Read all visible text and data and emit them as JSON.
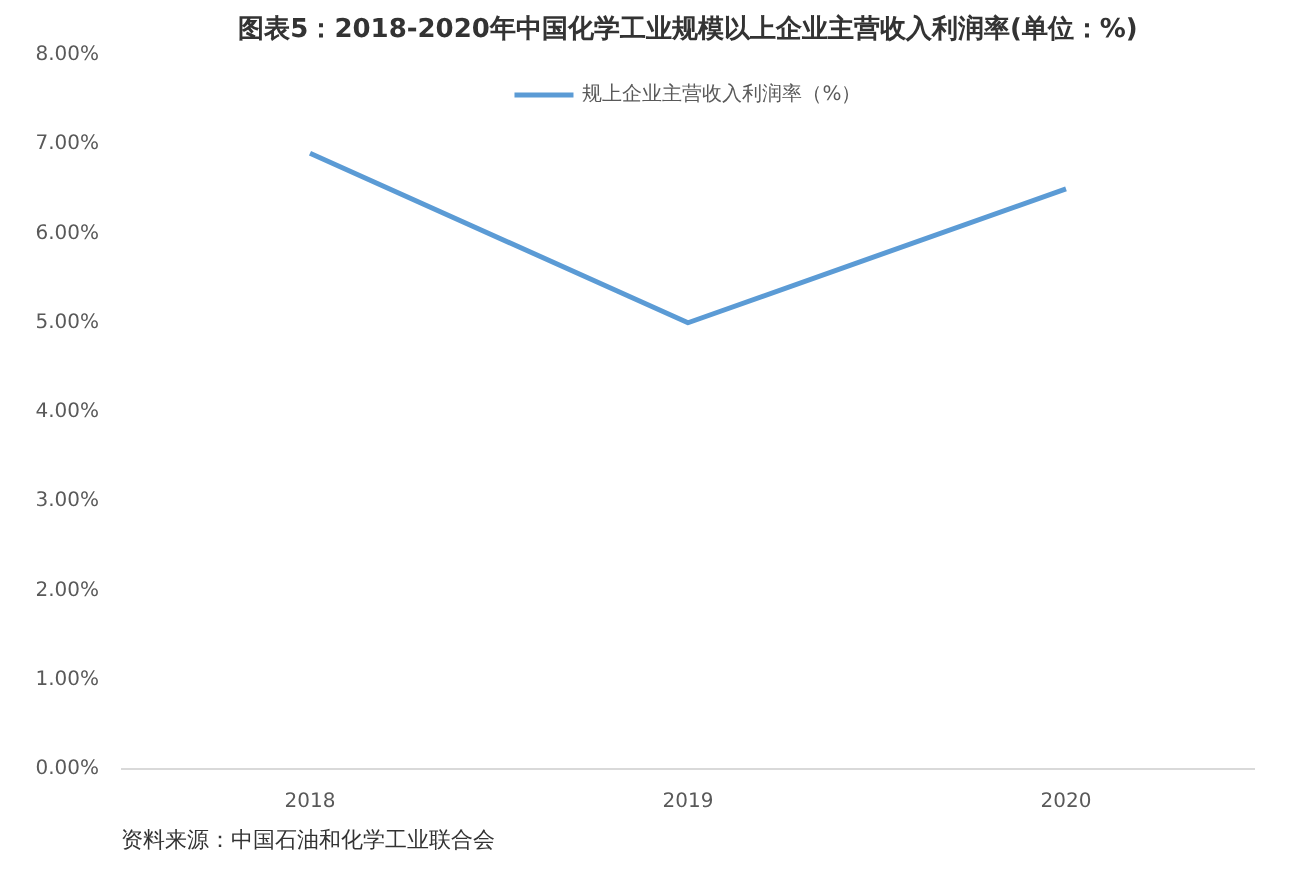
{
  "chart_data": {
    "type": "line",
    "title": "图表5：2018-2020年中国化学工业规模以上企业主营收入利润率(单位：%)",
    "categories": [
      "2018",
      "2019",
      "2020"
    ],
    "series": [
      {
        "name": "规上企业主营收入利润率（%）",
        "color": "#5b9bd5",
        "values": [
          6.9,
          5.0,
          6.5
        ]
      }
    ],
    "ylim": [
      0,
      8
    ],
    "yticks": [
      {
        "value": 0,
        "label": "0.00%"
      },
      {
        "value": 1,
        "label": "1.00%"
      },
      {
        "value": 2,
        "label": "2.00%"
      },
      {
        "value": 3,
        "label": "3.00%"
      },
      {
        "value": 4,
        "label": "4.00%"
      },
      {
        "value": 5,
        "label": "5.00%"
      },
      {
        "value": 6,
        "label": "6.00%"
      },
      {
        "value": 7,
        "label": "7.00%"
      },
      {
        "value": 8,
        "label": "8.00%"
      }
    ],
    "grid": false,
    "legend": "top",
    "marker": "none",
    "line_style": "solid",
    "annotations": [
      "资料来源：中国石油和化学工业联合会"
    ]
  }
}
